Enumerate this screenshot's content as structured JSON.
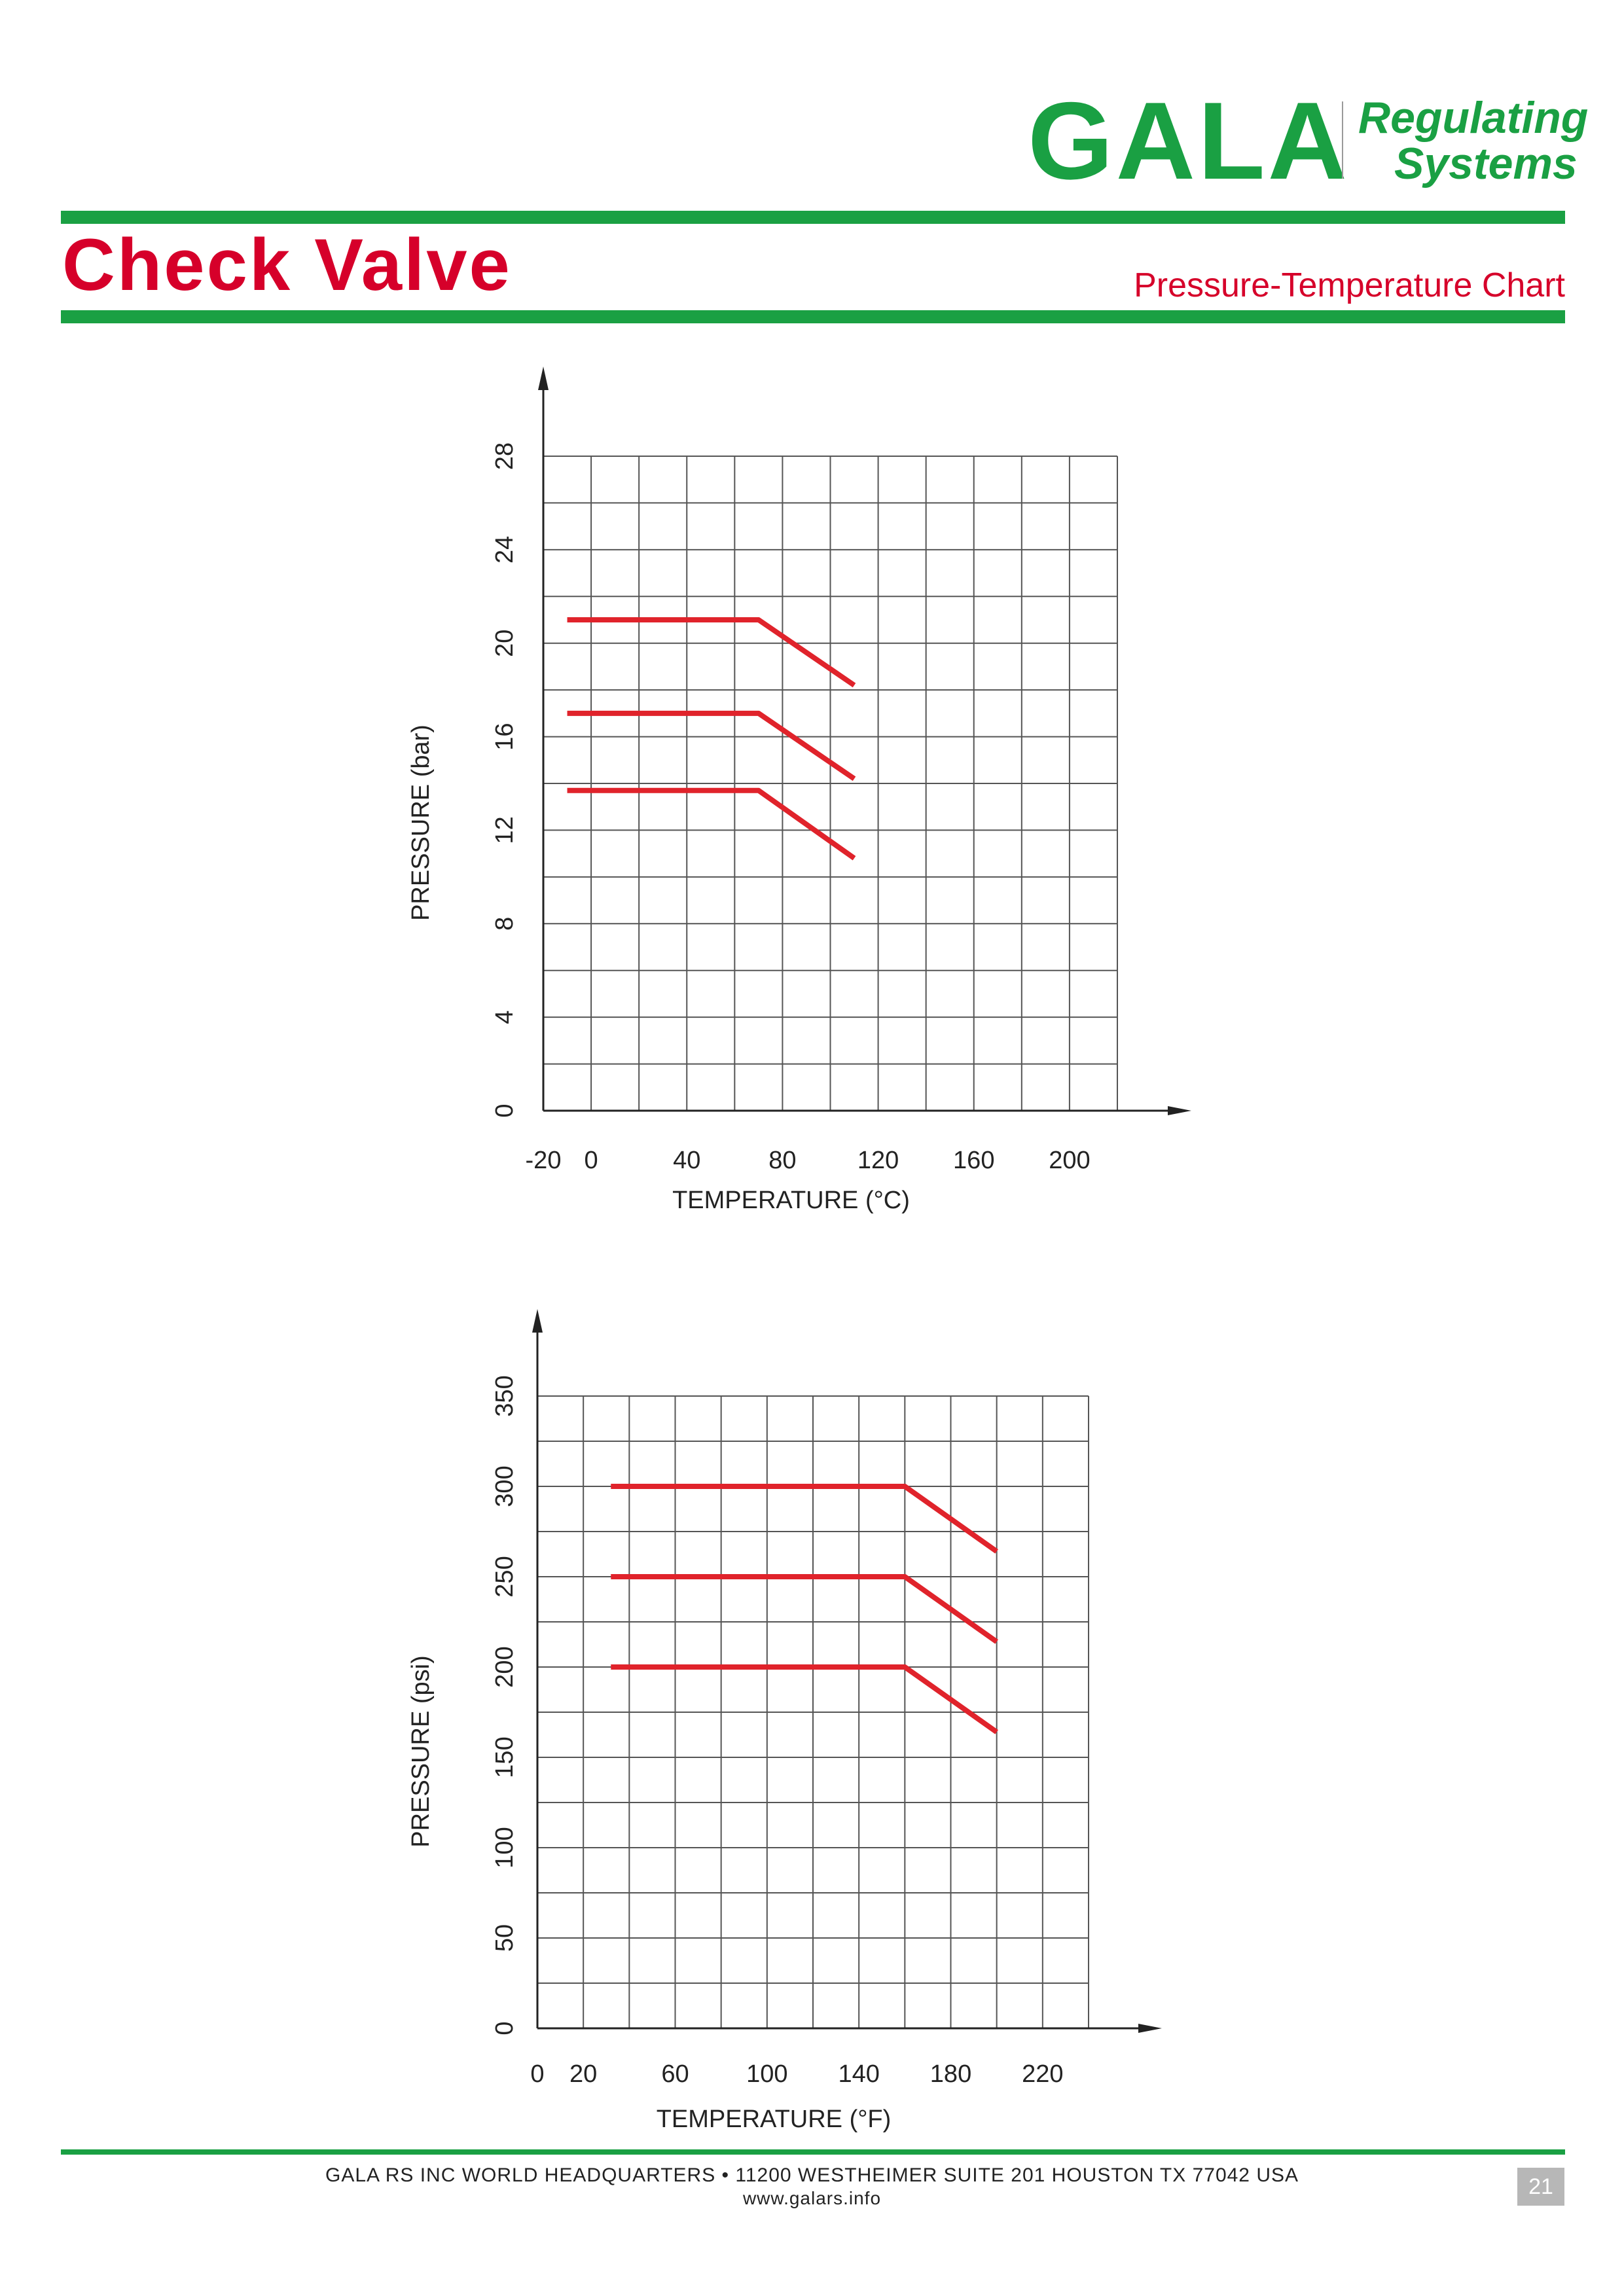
{
  "header": {
    "brand": "GALA",
    "brand_line1": "Regulating",
    "brand_line2": "Systems",
    "title": "Check Valve",
    "subtitle": "Pressure-Temperature Chart"
  },
  "colors": {
    "brand_green": "#1aa043",
    "title_red": "#d6002a",
    "line_red": "#e0232b",
    "grid": "#555555"
  },
  "chart_data": [
    {
      "type": "line",
      "xlabel": "TEMPERATURE (°C)",
      "ylabel": "PRESSURE (bar)",
      "xlim": [
        -20,
        220
      ],
      "ylim": [
        0,
        28
      ],
      "xticks": [
        -20,
        0,
        40,
        80,
        120,
        160,
        200
      ],
      "yticks": [
        0,
        4,
        8,
        12,
        16,
        20,
        24,
        28
      ],
      "grid": true,
      "series": [
        {
          "x": [
            -10,
            70,
            110
          ],
          "y": [
            21,
            21,
            18.2
          ]
        },
        {
          "x": [
            -10,
            70,
            110
          ],
          "y": [
            17,
            17,
            14.2
          ]
        },
        {
          "x": [
            -10,
            70,
            110
          ],
          "y": [
            13.7,
            13.7,
            10.8
          ]
        }
      ]
    },
    {
      "type": "line",
      "xlabel": "TEMPERATURE (°F)",
      "ylabel": "PRESSURE (psi)",
      "xlim": [
        0,
        240
      ],
      "ylim": [
        0,
        350
      ],
      "xticks": [
        0,
        20,
        60,
        100,
        140,
        180,
        220
      ],
      "yticks": [
        0,
        50,
        100,
        150,
        200,
        250,
        300,
        350
      ],
      "grid": true,
      "series": [
        {
          "x": [
            32,
            160,
            200
          ],
          "y": [
            300,
            300,
            264
          ]
        },
        {
          "x": [
            32,
            160,
            200
          ],
          "y": [
            250,
            250,
            214
          ]
        },
        {
          "x": [
            32,
            160,
            200
          ],
          "y": [
            200,
            200,
            164
          ]
        }
      ]
    }
  ],
  "footer": {
    "address": "GALA RS INC WORLD HEADQUARTERS • 11200 WESTHEIMER SUITE 201  HOUSTON TX 77042 USA",
    "website": "www.galars.info",
    "page_number": "21"
  }
}
